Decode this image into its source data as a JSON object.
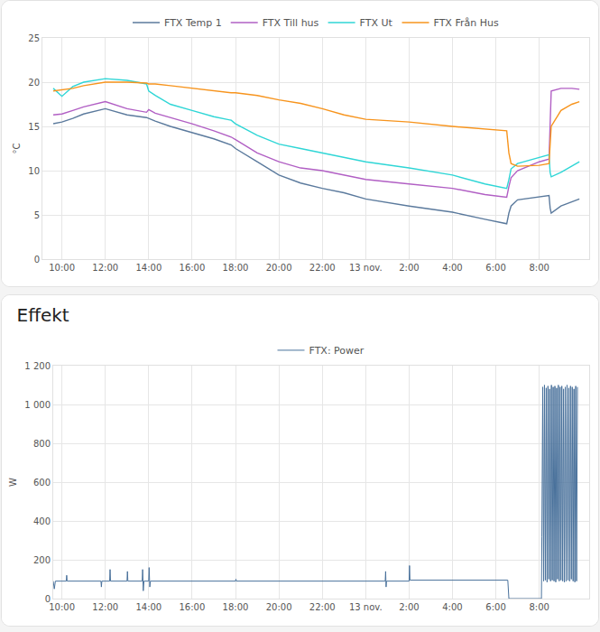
{
  "chart_data": [
    {
      "type": "line",
      "y_label": "°C",
      "legend": "top",
      "grid": true,
      "xlim": [
        9.1,
        34.3
      ],
      "xticks": [
        {
          "value": 10,
          "label": "10:00"
        },
        {
          "value": 12,
          "label": "12:00"
        },
        {
          "value": 14,
          "label": "14:00"
        },
        {
          "value": 16,
          "label": "16:00"
        },
        {
          "value": 18,
          "label": "18:00"
        },
        {
          "value": 20,
          "label": "20:00"
        },
        {
          "value": 22,
          "label": "22:00"
        },
        {
          "value": 24,
          "label": "13 nov."
        },
        {
          "value": 26,
          "label": "2:00"
        },
        {
          "value": 28,
          "label": "4:00"
        },
        {
          "value": 30,
          "label": "6:00"
        },
        {
          "value": 32,
          "label": "8:00"
        }
      ],
      "ylim": [
        0,
        25
      ],
      "yticks": [
        0,
        5,
        10,
        15,
        20,
        25
      ],
      "x": [
        9.6,
        10,
        10.5,
        11,
        12,
        13,
        13.9,
        14,
        14.3,
        15,
        16,
        17,
        17.8,
        18,
        19,
        20,
        21,
        22,
        23,
        24,
        26,
        28,
        29.5,
        30.5,
        30.6,
        30.7,
        31,
        32,
        32.45,
        32.5,
        32.55,
        33,
        33.5,
        33.85
      ],
      "series": [
        {
          "name": "FTX Temp 1",
          "color": "#5b7a9d",
          "values": [
            15.3,
            15.5,
            15.9,
            16.4,
            17,
            16.3,
            16,
            15.9,
            15.6,
            15,
            14.3,
            13.6,
            12.9,
            12.5,
            11,
            9.5,
            8.6,
            8,
            7.5,
            6.8,
            6,
            5.3,
            4.5,
            4,
            5.2,
            6,
            6.7,
            7,
            7.2,
            5.8,
            5.2,
            6,
            6.5,
            6.8
          ]
        },
        {
          "name": "FTX Till hus",
          "color": "#b15fc4",
          "values": [
            16.3,
            16.4,
            16.8,
            17.2,
            17.8,
            17,
            16.6,
            16.9,
            16.5,
            16,
            15.3,
            14.5,
            13.8,
            13.5,
            12,
            11,
            10.3,
            10,
            9.5,
            9,
            8.5,
            8,
            7.3,
            7,
            8.2,
            9.2,
            10,
            11,
            11.3,
            15,
            19,
            19.3,
            19.3,
            19.2
          ]
        },
        {
          "name": "FTX Ut",
          "color": "#2fd6d6",
          "values": [
            19.3,
            18.4,
            19.5,
            20,
            20.4,
            20.2,
            19.8,
            19,
            18.5,
            17.5,
            16.8,
            16.1,
            15.7,
            15.3,
            14,
            13,
            12.5,
            12,
            11.5,
            11,
            10.3,
            9.5,
            8.5,
            8,
            9,
            10.2,
            10.8,
            11.5,
            11.8,
            9.8,
            9.3,
            9.8,
            10.5,
            11
          ]
        },
        {
          "name": "FTX Från Hus",
          "color": "#f7941d",
          "values": [
            19,
            19.1,
            19.3,
            19.6,
            20,
            20,
            19.9,
            19.8,
            19.8,
            19.6,
            19.3,
            19,
            18.8,
            18.8,
            18.5,
            18,
            17.6,
            17,
            16.3,
            15.8,
            15.5,
            15,
            14.7,
            14.5,
            12,
            10.8,
            10.5,
            10.6,
            10.8,
            13,
            15,
            16.8,
            17.5,
            17.8
          ]
        }
      ]
    },
    {
      "type": "line",
      "title": "Effekt",
      "y_label": "W",
      "legend": "top",
      "grid": true,
      "xlim": [
        9.6,
        34.3
      ],
      "xticks": [
        {
          "value": 10,
          "label": "10:00"
        },
        {
          "value": 12,
          "label": "12:00"
        },
        {
          "value": 14,
          "label": "14:00"
        },
        {
          "value": 16,
          "label": "16:00"
        },
        {
          "value": 18,
          "label": "18:00"
        },
        {
          "value": 20,
          "label": "20:00"
        },
        {
          "value": 22,
          "label": "22:00"
        },
        {
          "value": 24,
          "label": "13 nov."
        },
        {
          "value": 26,
          "label": "2:00"
        },
        {
          "value": 28,
          "label": "4:00"
        },
        {
          "value": 30,
          "label": "6:00"
        },
        {
          "value": 32,
          "label": "8:00"
        }
      ],
      "ylim": [
        0,
        1200
      ],
      "yticks": [
        0,
        200,
        400,
        600,
        800,
        {
          "value": 1000,
          "label": "1 000"
        },
        {
          "value": 1200,
          "label": "1 200"
        }
      ],
      "x": [
        9.6,
        9.65,
        9.7,
        10.2,
        10.22,
        10.24,
        11.8,
        11.82,
        11.84,
        12.2,
        12.22,
        12.24,
        13,
        13.02,
        13.04,
        13.7,
        13.72,
        13.75,
        13.78,
        14,
        14.02,
        14.05,
        14.08,
        18,
        18.02,
        18.04,
        24.9,
        24.92,
        24.94,
        24.96,
        26,
        26.02,
        26.04,
        30.55,
        30.6,
        32.1,
        32.12,
        32.16,
        32.2,
        32.24,
        32.28,
        32.32,
        32.36,
        32.4,
        32.44,
        32.48,
        32.52,
        32.56,
        32.6,
        32.64,
        32.68,
        32.72,
        32.76,
        32.8,
        32.84,
        32.88,
        32.92,
        32.96,
        33,
        33.04,
        33.08,
        33.12,
        33.16,
        33.2,
        33.24,
        33.28,
        33.32,
        33.36,
        33.4,
        33.44,
        33.48,
        33.52,
        33.56,
        33.6,
        33.64,
        33.68,
        33.72,
        33.76
      ],
      "series": [
        {
          "name": "FTX: Power",
          "color": "#49719b",
          "values": [
            90,
            50,
            90,
            90,
            120,
            90,
            90,
            60,
            90,
            90,
            150,
            90,
            90,
            140,
            90,
            90,
            150,
            40,
            90,
            90,
            160,
            60,
            90,
            90,
            100,
            90,
            90,
            140,
            60,
            90,
            90,
            170,
            95,
            95,
            0,
            0,
            320,
            1090,
            90,
            1100,
            95,
            1085,
            85,
            1095,
            100,
            1080,
            90,
            1100,
            95,
            1090,
            90,
            1095,
            85,
            1085,
            100,
            1100,
            90,
            1090,
            95,
            1095,
            90,
            1080,
            85,
            1090,
            90,
            1100,
            95,
            1085,
            90,
            1095,
            100,
            1090,
            90,
            1080,
            85,
            1095,
            90,
            1090
          ]
        }
      ]
    }
  ]
}
